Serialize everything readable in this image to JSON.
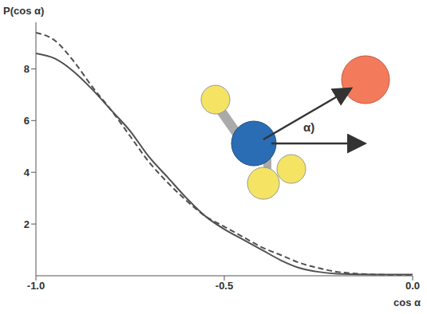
{
  "chart_data": {
    "type": "line",
    "x_label": "cos α",
    "y_label": "P(cos α)",
    "annotations": [
      "α)"
    ],
    "xlim": [
      -1,
      0
    ],
    "xticks": [
      {
        "value": -1,
        "label": "-1.0"
      },
      {
        "value": -0.5,
        "label": "-0.5"
      },
      {
        "value": 0,
        "label": "0.0"
      }
    ],
    "ylim": [
      0,
      9.8
    ],
    "yticks": [
      2,
      4,
      6,
      8
    ],
    "grid": false,
    "x": [
      -1,
      -0.95,
      -0.9,
      -0.85,
      -0.8,
      -0.75,
      -0.7,
      -0.65,
      -0.6,
      -0.55,
      -0.5,
      -0.45,
      -0.4,
      -0.35,
      -0.3,
      -0.25,
      -0.2,
      -0.1,
      0
    ],
    "series": [
      {
        "color": "#505050",
        "line_style": "solid",
        "values": [
          8.6,
          8.4,
          7.9,
          7.2,
          6.4,
          5.6,
          4.6,
          3.8,
          3.0,
          2.3,
          1.8,
          1.4,
          1.0,
          0.6,
          0.3,
          0.15,
          0.08,
          0.05,
          0.05
        ]
      },
      {
        "color": "#505050",
        "line_style": "dashed",
        "values": [
          9.4,
          9.1,
          8.3,
          7.3,
          6.4,
          5.4,
          4.4,
          3.6,
          2.9,
          2.3,
          1.9,
          1.5,
          1.1,
          0.8,
          0.5,
          0.3,
          0.15,
          0.05,
          0.02
        ]
      }
    ]
  }
}
